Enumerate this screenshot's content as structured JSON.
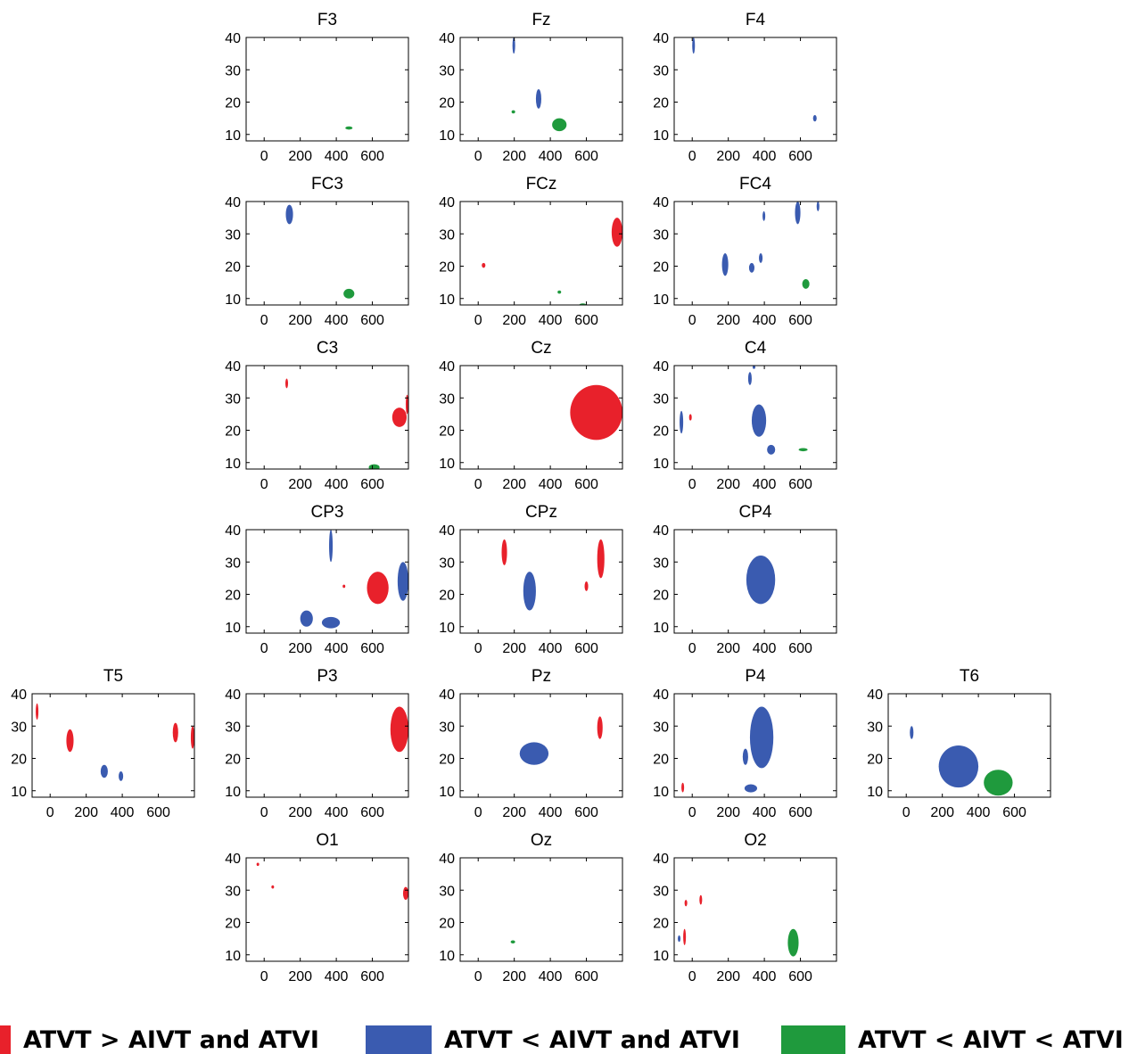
{
  "figure": {
    "axis_x_ticks": [
      "0",
      "200",
      "400",
      "600"
    ],
    "axis_y_ticks": [
      "10",
      "20",
      "30",
      "40"
    ]
  },
  "legend": [
    {
      "label": "ATVT > AIVT and ATVI",
      "color": "#e8212b"
    },
    {
      "label": "ATVT < AIVT and ATVI",
      "color": "#3a5bb0"
    },
    {
      "label": "ATVT < AIVT < ATVI",
      "color": "#1f9a3d"
    }
  ],
  "chart_data": {
    "type": "heatmap",
    "description_of_marks": "significant time-frequency clusters per electrode (x: time in ms, y: frequency)",
    "xlim": [
      -100,
      800
    ],
    "ylim": [
      8,
      40
    ],
    "x_ticks": [
      0,
      200,
      400,
      600
    ],
    "y_ticks": [
      10,
      20,
      30,
      40
    ],
    "colors": {
      "red": "#e8212b",
      "blue": "#3a5bb0",
      "green": "#1f9a3d"
    },
    "panels": [
      {
        "title": "F3",
        "row": 0,
        "col": 1,
        "blobs": [
          {
            "c": "green",
            "x": [
              450,
              490
            ],
            "y": [
              11.5,
              12.5
            ]
          }
        ]
      },
      {
        "title": "Fz",
        "row": 0,
        "col": 2,
        "blobs": [
          {
            "c": "blue",
            "x": [
              190,
              205
            ],
            "y": [
              35,
              40
            ]
          },
          {
            "c": "blue",
            "x": [
              320,
              350
            ],
            "y": [
              18,
              24
            ]
          },
          {
            "c": "green",
            "x": [
              185,
              205
            ],
            "y": [
              16.5,
              17.5
            ]
          },
          {
            "c": "green",
            "x": [
              410,
              490
            ],
            "y": [
              11,
              15
            ]
          }
        ]
      },
      {
        "title": "F4",
        "row": 0,
        "col": 3,
        "blobs": [
          {
            "c": "blue",
            "x": [
              0,
              15
            ],
            "y": [
              35,
              40
            ]
          },
          {
            "c": "blue",
            "x": [
              670,
              690
            ],
            "y": [
              14,
              16
            ]
          }
        ]
      },
      {
        "title": "FC3",
        "row": 1,
        "col": 1,
        "blobs": [
          {
            "c": "blue",
            "x": [
              120,
              160
            ],
            "y": [
              33,
              39
            ]
          },
          {
            "c": "green",
            "x": [
              440,
              500
            ],
            "y": [
              10,
              13
            ]
          }
        ]
      },
      {
        "title": "FCz",
        "row": 1,
        "col": 2,
        "blobs": [
          {
            "c": "red",
            "x": [
              20,
              40
            ],
            "y": [
              19.5,
              21
            ]
          },
          {
            "c": "red",
            "x": [
              740,
              800
            ],
            "y": [
              26,
              35
            ]
          },
          {
            "c": "green",
            "x": [
              440,
              460
            ],
            "y": [
              11.5,
              12.5
            ]
          },
          {
            "c": "green",
            "x": [
              560,
              600
            ],
            "y": [
              7.5,
              8.5
            ]
          }
        ]
      },
      {
        "title": "FC4",
        "row": 1,
        "col": 3,
        "blobs": [
          {
            "c": "blue",
            "x": [
              570,
              600
            ],
            "y": [
              33,
              40
            ]
          },
          {
            "c": "blue",
            "x": [
              690,
              705
            ],
            "y": [
              37,
              40
            ]
          },
          {
            "c": "blue",
            "x": [
              390,
              405
            ],
            "y": [
              34,
              37
            ]
          },
          {
            "c": "blue",
            "x": [
              165,
              200
            ],
            "y": [
              17,
              24
            ]
          },
          {
            "c": "blue",
            "x": [
              315,
              345
            ],
            "y": [
              18,
              21
            ]
          },
          {
            "c": "blue",
            "x": [
              370,
              390
            ],
            "y": [
              21,
              24
            ]
          },
          {
            "c": "green",
            "x": [
              610,
              650
            ],
            "y": [
              13,
              16
            ]
          }
        ]
      },
      {
        "title": "C3",
        "row": 2,
        "col": 1,
        "blobs": [
          {
            "c": "red",
            "x": [
              120,
              130
            ],
            "y": [
              33,
              36
            ]
          },
          {
            "c": "red",
            "x": [
              710,
              790
            ],
            "y": [
              21,
              27
            ]
          },
          {
            "c": "red",
            "x": [
              785,
              800
            ],
            "y": [
              25,
              31
            ]
          },
          {
            "c": "green",
            "x": [
              580,
              640
            ],
            "y": [
              7.5,
              9.5
            ]
          }
        ]
      },
      {
        "title": "Cz",
        "row": 2,
        "col": 2,
        "blobs": [
          {
            "c": "red",
            "x": [
              510,
              800
            ],
            "y": [
              17,
              34
            ]
          }
        ]
      },
      {
        "title": "C4",
        "row": 2,
        "col": 3,
        "blobs": [
          {
            "c": "blue",
            "x": [
              -70,
              -50
            ],
            "y": [
              19,
              26
            ]
          },
          {
            "c": "red",
            "x": [
              -15,
              -5
            ],
            "y": [
              23,
              25
            ]
          },
          {
            "c": "blue",
            "x": [
              310,
              330
            ],
            "y": [
              34,
              38
            ]
          },
          {
            "c": "blue",
            "x": [
              335,
              350
            ],
            "y": [
              39,
              40
            ]
          },
          {
            "c": "blue",
            "x": [
              330,
              410
            ],
            "y": [
              18,
              28
            ]
          },
          {
            "c": "blue",
            "x": [
              415,
              460
            ],
            "y": [
              12.5,
              15.5
            ]
          },
          {
            "c": "green",
            "x": [
              590,
              640
            ],
            "y": [
              13.5,
              14.5
            ]
          }
        ]
      },
      {
        "title": "CP3",
        "row": 3,
        "col": 1,
        "blobs": [
          {
            "c": "blue",
            "x": [
              360,
              380
            ],
            "y": [
              30,
              40
            ]
          },
          {
            "c": "blue",
            "x": [
              200,
              270
            ],
            "y": [
              10,
              15
            ]
          },
          {
            "c": "blue",
            "x": [
              320,
              420
            ],
            "y": [
              9.5,
              13
            ]
          },
          {
            "c": "red",
            "x": [
              570,
              690
            ],
            "y": [
              17,
              27
            ]
          },
          {
            "c": "red",
            "x": [
              440,
              445
            ],
            "y": [
              22,
              23
            ]
          },
          {
            "c": "blue",
            "x": [
              740,
              800
            ],
            "y": [
              18,
              30
            ]
          }
        ]
      },
      {
        "title": "CPz",
        "row": 3,
        "col": 2,
        "blobs": [
          {
            "c": "red",
            "x": [
              130,
              160
            ],
            "y": [
              29,
              37
            ]
          },
          {
            "c": "blue",
            "x": [
              250,
              320
            ],
            "y": [
              15,
              27
            ]
          },
          {
            "c": "red",
            "x": [
              590,
              610
            ],
            "y": [
              21,
              24
            ]
          },
          {
            "c": "red",
            "x": [
              660,
              700
            ],
            "y": [
              25,
              37
            ]
          }
        ]
      },
      {
        "title": "CP4",
        "row": 3,
        "col": 3,
        "blobs": [
          {
            "c": "blue",
            "x": [
              300,
              460
            ],
            "y": [
              17,
              32
            ]
          }
        ]
      },
      {
        "title": "T5",
        "row": 4,
        "col": 0,
        "blobs": [
          {
            "c": "red",
            "x": [
              -80,
              -65
            ],
            "y": [
              32,
              37
            ]
          },
          {
            "c": "red",
            "x": [
              90,
              130
            ],
            "y": [
              22,
              29
            ]
          },
          {
            "c": "blue",
            "x": [
              280,
              320
            ],
            "y": [
              14,
              18
            ]
          },
          {
            "c": "blue",
            "x": [
              380,
              405
            ],
            "y": [
              13,
              16
            ]
          },
          {
            "c": "red",
            "x": [
              680,
              710
            ],
            "y": [
              25,
              31
            ]
          },
          {
            "c": "red",
            "x": [
              780,
              800
            ],
            "y": [
              23,
              30
            ]
          }
        ]
      },
      {
        "title": "P3",
        "row": 4,
        "col": 1,
        "blobs": [
          {
            "c": "red",
            "x": [
              700,
              800
            ],
            "y": [
              22,
              36
            ]
          }
        ]
      },
      {
        "title": "Pz",
        "row": 4,
        "col": 2,
        "blobs": [
          {
            "c": "blue",
            "x": [
              230,
              390
            ],
            "y": [
              18,
              25
            ]
          },
          {
            "c": "red",
            "x": [
              660,
              690
            ],
            "y": [
              26,
              33
            ]
          }
        ]
      },
      {
        "title": "P4",
        "row": 4,
        "col": 3,
        "blobs": [
          {
            "c": "red",
            "x": [
              -60,
              -45
            ],
            "y": [
              9.5,
              12.5
            ]
          },
          {
            "c": "blue",
            "x": [
              280,
              310
            ],
            "y": [
              18,
              23
            ]
          },
          {
            "c": "blue",
            "x": [
              320,
              450
            ],
            "y": [
              17,
              36
            ]
          },
          {
            "c": "blue",
            "x": [
              290,
              360
            ],
            "y": [
              9.5,
              12
            ]
          }
        ]
      },
      {
        "title": "T6",
        "row": 4,
        "col": 4,
        "blobs": [
          {
            "c": "blue",
            "x": [
              20,
              40
            ],
            "y": [
              26,
              30
            ]
          },
          {
            "c": "blue",
            "x": [
              180,
              400
            ],
            "y": [
              11,
              24
            ]
          },
          {
            "c": "green",
            "x": [
              430,
              590
            ],
            "y": [
              8.5,
              16.5
            ]
          }
        ]
      },
      {
        "title": "O1",
        "row": 5,
        "col": 1,
        "blobs": [
          {
            "c": "red",
            "x": [
              -40,
              -30
            ],
            "y": [
              37.5,
              38.5
            ]
          },
          {
            "c": "red",
            "x": [
              40,
              55
            ],
            "y": [
              30.5,
              31.5
            ]
          },
          {
            "c": "red",
            "x": [
              770,
              800
            ],
            "y": [
              27,
              31
            ]
          }
        ]
      },
      {
        "title": "Oz",
        "row": 5,
        "col": 2,
        "blobs": [
          {
            "c": "green",
            "x": [
              180,
              205
            ],
            "y": [
              13.5,
              14.5
            ]
          }
        ]
      },
      {
        "title": "O2",
        "row": 5,
        "col": 3,
        "blobs": [
          {
            "c": "blue",
            "x": [
              -80,
              -65
            ],
            "y": [
              14,
              16
            ]
          },
          {
            "c": "red",
            "x": [
              -50,
              -35
            ],
            "y": [
              13,
              18
            ]
          },
          {
            "c": "red",
            "x": [
              -40,
              -30
            ],
            "y": [
              25,
              27
            ]
          },
          {
            "c": "red",
            "x": [
              40,
              55
            ],
            "y": [
              25.5,
              28.5
            ]
          },
          {
            "c": "green",
            "x": [
              530,
              590
            ],
            "y": [
              9.5,
              18
            ]
          }
        ]
      }
    ]
  }
}
